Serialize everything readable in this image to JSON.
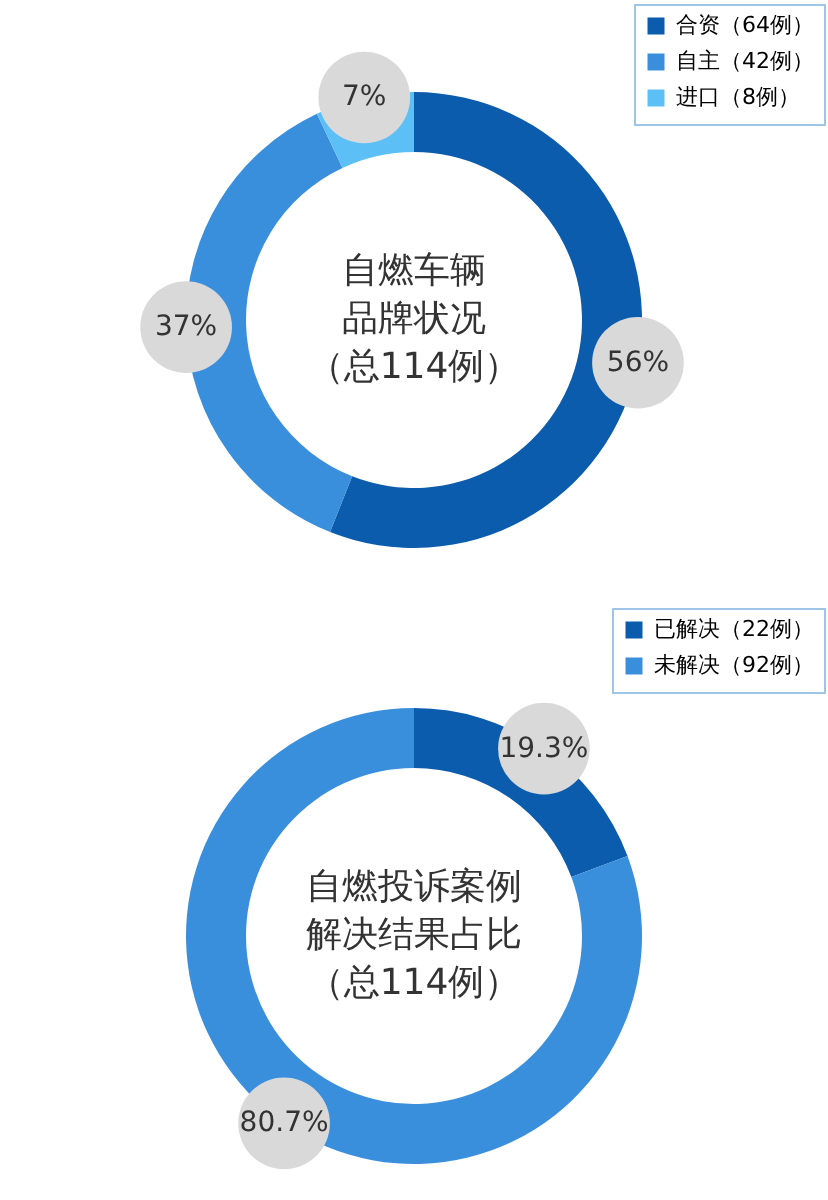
{
  "chart_data": [
    {
      "type": "donut",
      "title": "自燃车辆品牌状况（总114例）",
      "categories": [
        "合资（64例）",
        "自主（42例）",
        "进口（8例）"
      ],
      "values": [
        56,
        37,
        7
      ],
      "value_labels": [
        "56%",
        "37%",
        "7%"
      ],
      "colors": [
        "#0b5cad",
        "#3a8fdc",
        "#5cc0f7"
      ],
      "legend": "top right"
    },
    {
      "type": "donut",
      "title": "自燃投诉案例解决结果占比（总114例）",
      "categories": [
        "已解决（22例）",
        "未解决（92例）"
      ],
      "values": [
        19.3,
        80.7
      ],
      "value_labels": [
        "19.3%",
        "80.7%"
      ],
      "colors": [
        "#0b5cad",
        "#3a8fdc"
      ],
      "legend": "top right"
    }
  ]
}
